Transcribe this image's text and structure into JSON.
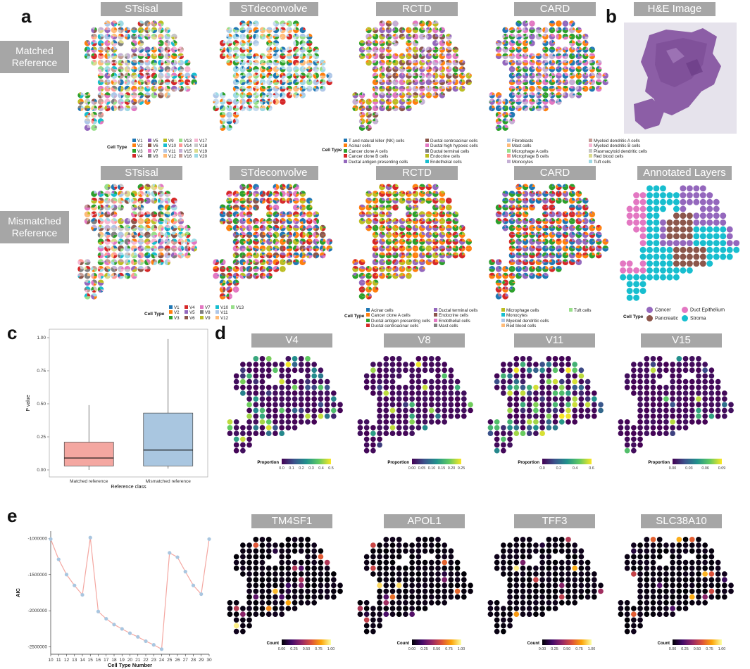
{
  "panel_labels": {
    "a": "a",
    "b": "b",
    "c": "c",
    "d": "d",
    "e": "e"
  },
  "row_labels": {
    "matched": "Matched\nReference",
    "mismatched": "Mismatched\nReference"
  },
  "methods": [
    "STsisal",
    "STdeconvolve",
    "RCTD",
    "CARD"
  ],
  "he_title": "H&E Image",
  "annot_title": "Annotated Layers",
  "legend_title": "Cell Type",
  "legend_v20": [
    "V1",
    "V2",
    "V3",
    "V4",
    "V5",
    "V6",
    "V7",
    "V8",
    "V9",
    "V10",
    "V11",
    "V12",
    "V13",
    "V14",
    "V15",
    "V16",
    "V17",
    "V18",
    "V19",
    "V20"
  ],
  "legend_v13": [
    "V1",
    "V2",
    "V3",
    "V4",
    "V5",
    "V6",
    "V7",
    "V8",
    "V9",
    "V10",
    "V11",
    "V12",
    "V13"
  ],
  "legend_matched_celltypes": [
    "T and natural killer (NK) cells",
    "Acinar cells",
    "Cancer clone A cells",
    "Cancer clone B cells",
    "Ductal antigen presenting cells",
    "Ductal centroacinar cells",
    "Ductal high hypoxic cells",
    "Ductal terminal cells",
    "Endocrine cells",
    "Endothelial cells",
    "Fibroblasts",
    "Mast cells",
    "Microphage A cells",
    "Microphage B cells",
    "Monocytes",
    "Myeloid dendritic A cells",
    "Myeloid dendritic B cells",
    "Plasmacytoid dendritic cells",
    "Red blood cells",
    "Tuft cells"
  ],
  "legend_mismatched_celltypes": [
    "Acinar cells",
    "Cancer clone A cells",
    "Ductal antigen presenting cells",
    "Ductal centroacinar cells",
    "Ductal terminal cells",
    "Endocrine cells",
    "Endothelial cells",
    "Mast cells",
    "Microphage cells",
    "Monocytes",
    "Myeloid dendritic cells",
    "Red blood cells",
    "Tuft cells"
  ],
  "annot_legend": [
    "Cancer",
    "Pancreatic",
    "Duct Epithelium",
    "Stroma"
  ],
  "colors": {
    "header_gray": "#a6a6a6",
    "matched_box": "#f4a7a1",
    "mismatched_box": "#a9c6e0",
    "aic_line": "#f4a7a1",
    "aic_point": "#a9c6e0",
    "cancer": "#9467bd",
    "pancreatic": "#8c564b",
    "duct": "#e377c2",
    "stroma": "#17becf"
  },
  "d_titles": [
    "V4",
    "V8",
    "V11",
    "V15"
  ],
  "d_colorbar_title": "Proportion",
  "d_ticks": [
    [
      "0.0",
      "0.1",
      "0.2",
      "0.3",
      "0.4",
      "0.5"
    ],
    [
      "0.00",
      "0.05",
      "0.10",
      "0.15",
      "0.20",
      "0.25"
    ],
    [
      "0.0",
      "0.2",
      "0.4",
      "0.6"
    ],
    [
      "0.00",
      "0.03",
      "0.06",
      "0.09"
    ]
  ],
  "gene_titles": [
    "TM4SF1",
    "APOL1",
    "TFF3",
    "SLC38A10"
  ],
  "gene_colorbar_title": "Count",
  "gene_ticks": [
    "0.00",
    "0.25",
    "0.50",
    "0.75",
    "1.00"
  ],
  "chart_data": [
    {
      "type": "box",
      "xlabel": "Reference class",
      "ylabel": "P value",
      "categories": [
        "Matched reference",
        "Mismatched reference"
      ],
      "yticks": [
        "0.00",
        "0.25",
        "0.50",
        "0.75",
        "1.00"
      ],
      "ylim": [
        0,
        1.0
      ],
      "boxes": [
        {
          "category": "Matched reference",
          "min": 0.0,
          "q1": 0.03,
          "median": 0.09,
          "q3": 0.21,
          "max": 0.49
        },
        {
          "category": "Mismatched reference",
          "min": 0.01,
          "q1": 0.03,
          "median": 0.15,
          "q3": 0.43,
          "max": 0.99
        }
      ]
    },
    {
      "type": "line",
      "xlabel": "Cell Type Number",
      "ylabel": "AIC",
      "x": [
        10,
        11,
        12,
        13,
        14,
        15,
        16,
        17,
        18,
        19,
        20,
        21,
        22,
        23,
        24,
        25,
        26,
        27,
        28,
        29,
        30
      ],
      "y": [
        -1010000,
        -1290000,
        -1500000,
        -1650000,
        -1780000,
        -990000,
        -2010000,
        -2110000,
        -2190000,
        -2250000,
        -2310000,
        -2360000,
        -2420000,
        -2470000,
        -2530000,
        -1200000,
        -1260000,
        -1460000,
        -1650000,
        -1770000,
        -1010000
      ],
      "yticks": [
        "-1000000",
        "-1500000",
        "-2000000",
        "-2500000"
      ],
      "ylim": [
        -2600000,
        -900000
      ]
    }
  ]
}
